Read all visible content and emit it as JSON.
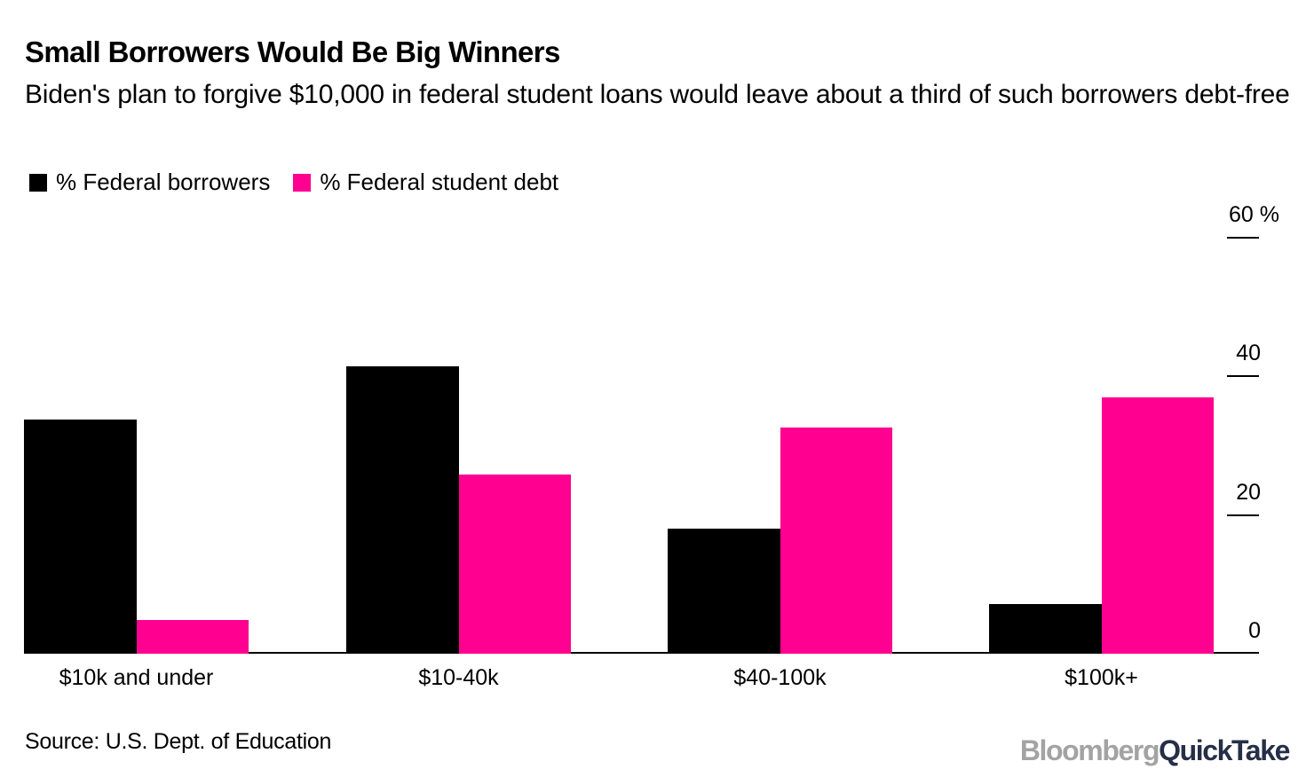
{
  "header": {
    "title": "Small Borrowers Would Be Big Winners",
    "subtitle": "Biden's plan to forgive $10,000 in federal student loans would leave about a third of such borrowers debt-free"
  },
  "legend": [
    {
      "label": "% Federal borrowers",
      "color": "#000000"
    },
    {
      "label": "% Federal student debt",
      "color": "#ff0090"
    }
  ],
  "footer": {
    "source": "Source: U.S. Dept. of Education",
    "logo_part1": "Bloomberg",
    "logo_part2": "QuickTake"
  },
  "axis": {
    "ticks": [
      {
        "value": 60,
        "label": "60 %"
      },
      {
        "value": 40,
        "label": "40"
      },
      {
        "value": 20,
        "label": "20"
      },
      {
        "value": 0,
        "label": "0"
      }
    ]
  },
  "chart_data": {
    "type": "bar",
    "title": "Small Borrowers Would Be Big Winners",
    "subtitle": "Biden's plan to forgive $10,000 in federal student loans would leave about a third of such borrowers debt-free",
    "categories": [
      "$10k and under",
      "$10-40k",
      "$40-100k",
      "$100k+"
    ],
    "series": [
      {
        "name": "% Federal borrowers",
        "color": "#000000",
        "values": [
          33.8,
          41.4,
          18.1,
          7.2
        ]
      },
      {
        "name": "% Federal student debt",
        "color": "#ff0090",
        "values": [
          4.9,
          25.9,
          32.6,
          37.0
        ]
      }
    ],
    "xlabel": "",
    "ylabel": "%",
    "ylim": [
      0,
      60
    ],
    "yticks": [
      0,
      20,
      40,
      60
    ],
    "y_axis_position": "right",
    "grid": false,
    "legend_position": "top-left",
    "source": "Source: U.S. Dept. of Education"
  }
}
